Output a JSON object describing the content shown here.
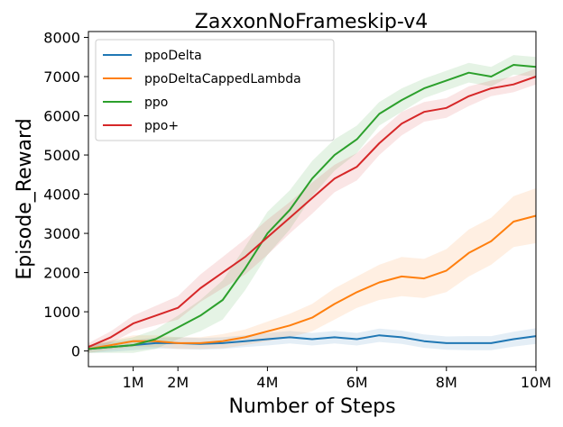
{
  "chart_data": {
    "type": "line",
    "title": "ZaxxonNoFrameskip-v4",
    "xlabel": "Number of Steps",
    "ylabel": "Episode_Reward",
    "xlim": [
      0,
      10000000
    ],
    "ylim": [
      -400,
      8150
    ],
    "x_ticks": [
      {
        "value": 1000000,
        "label": "1M"
      },
      {
        "value": 2000000,
        "label": "2M"
      },
      {
        "value": 4000000,
        "label": "4M"
      },
      {
        "value": 6000000,
        "label": "6M"
      },
      {
        "value": 8000000,
        "label": "8M"
      },
      {
        "value": 10000000,
        "label": "10M"
      }
    ],
    "y_ticks": [
      {
        "value": 0,
        "label": "0"
      },
      {
        "value": 1000,
        "label": "1000"
      },
      {
        "value": 2000,
        "label": "2000"
      },
      {
        "value": 3000,
        "label": "3000"
      },
      {
        "value": 4000,
        "label": "4000"
      },
      {
        "value": 5000,
        "label": "5000"
      },
      {
        "value": 6000,
        "label": "6000"
      },
      {
        "value": 7000,
        "label": "7000"
      },
      {
        "value": 8000,
        "label": "8000"
      }
    ],
    "grid": false,
    "legend_position": "upper-left",
    "x": [
      0,
      500000,
      1000000,
      1500000,
      2000000,
      2500000,
      3000000,
      3500000,
      4000000,
      4500000,
      5000000,
      5500000,
      6000000,
      6500000,
      7000000,
      7500000,
      8000000,
      8500000,
      9000000,
      9500000,
      10000000
    ],
    "series": [
      {
        "name": "ppoDelta",
        "color": "#1f77b4",
        "values": [
          50,
          100,
          150,
          200,
          200,
          180,
          200,
          250,
          300,
          350,
          300,
          350,
          300,
          400,
          350,
          250,
          200,
          200,
          200,
          300,
          380
        ],
        "band": [
          100,
          120,
          130,
          140,
          150,
          150,
          150,
          150,
          160,
          160,
          160,
          160,
          160,
          170,
          170,
          170,
          170,
          180,
          180,
          190,
          200
        ]
      },
      {
        "name": "ppoDeltaCappedLambda",
        "color": "#ff7f0e",
        "values": [
          50,
          150,
          250,
          250,
          200,
          200,
          250,
          350,
          500,
          650,
          850,
          1200,
          1500,
          1750,
          1900,
          1850,
          2050,
          2500,
          2800,
          3300,
          3450
        ],
        "band": [
          100,
          120,
          150,
          150,
          150,
          150,
          180,
          200,
          250,
          300,
          350,
          400,
          400,
          450,
          500,
          500,
          550,
          600,
          600,
          650,
          700
        ]
      },
      {
        "name": "ppo",
        "color": "#2ca02c",
        "values": [
          50,
          100,
          150,
          300,
          600,
          900,
          1300,
          2100,
          3000,
          3600,
          4400,
          5000,
          5400,
          6050,
          6400,
          6700,
          6900,
          7100,
          7000,
          7300,
          7250
        ],
        "band": [
          100,
          150,
          200,
          250,
          300,
          400,
          500,
          550,
          550,
          500,
          450,
          400,
          350,
          300,
          300,
          250,
          250,
          250,
          250,
          250,
          250
        ]
      },
      {
        "name": "ppo+",
        "color": "#d62728",
        "values": [
          100,
          350,
          700,
          900,
          1100,
          1600,
          2000,
          2400,
          2900,
          3400,
          3900,
          4400,
          4700,
          5300,
          5800,
          6100,
          6200,
          6500,
          6700,
          6800,
          7000
        ],
        "band": [
          100,
          150,
          200,
          250,
          300,
          350,
          400,
          450,
          450,
          400,
          400,
          350,
          350,
          300,
          300,
          250,
          250,
          250,
          200,
          200,
          200
        ]
      }
    ]
  }
}
